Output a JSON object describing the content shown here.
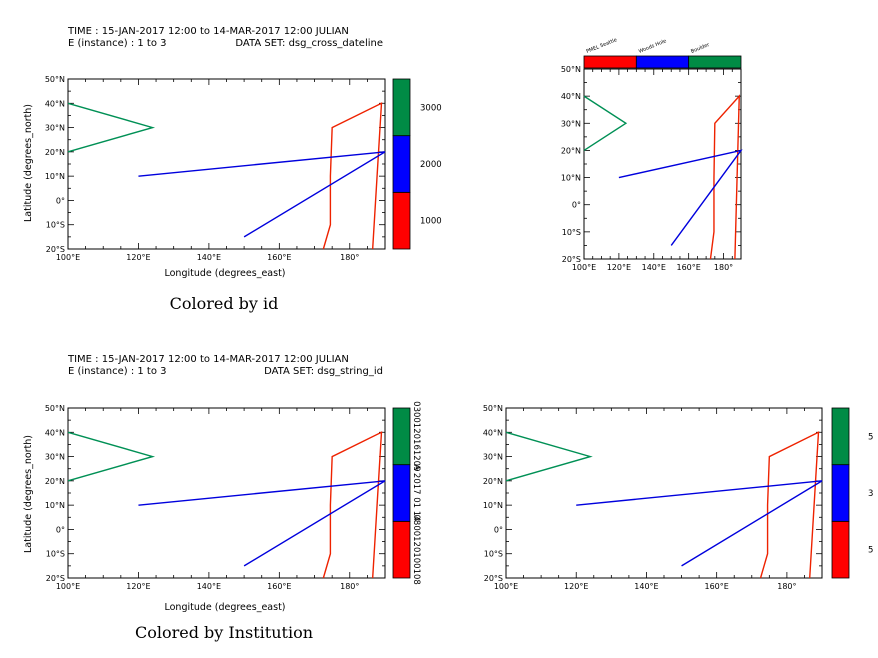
{
  "header_top": {
    "line1": "TIME : 15-JAN-2017 12:00 to 14-MAR-2017 12:00 JULIAN",
    "line2": "E (instance) : 1 to 3",
    "dataset": "DATA SET: dsg_cross_dateline"
  },
  "header_bottom": {
    "line1": "TIME : 15-JAN-2017 12:00 to 14-MAR-2017 12:00 JULIAN",
    "line2": "E (instance) : 1 to 3",
    "dataset": "DATA SET: dsg_string_id"
  },
  "captions": {
    "top": "Colored by id",
    "bottom": "Colored by Institution"
  },
  "axis_labels": {
    "x": "Longitude (degrees_east)",
    "y": "Latitude (degrees_north)"
  },
  "colors": {
    "red": "#ff0000",
    "blue": "#0000ff",
    "green": "#008b45",
    "red_line": "#ee2200",
    "blue_line": "#0000dd",
    "green_line": "#009055"
  },
  "chart_data": [
    {
      "id": "top-left",
      "type": "line",
      "xlim": [
        100,
        190
      ],
      "ylim": [
        -20,
        50
      ],
      "xticks": [
        100,
        120,
        140,
        160,
        180
      ],
      "xtick_labels": [
        "100°E",
        "120°E",
        "140°E",
        "160°E",
        "180°"
      ],
      "yticks": [
        -20,
        -10,
        0,
        10,
        20,
        30,
        40,
        50
      ],
      "ytick_labels": [
        "20°S",
        "10°S",
        "0°",
        "10°N",
        "20°N",
        "30°N",
        "40°N",
        "50°N"
      ],
      "colorbar": {
        "orientation": "vertical",
        "labels": [
          "1000",
          "2000",
          "3000"
        ]
      }
    },
    {
      "id": "top-right",
      "type": "line",
      "xlim": [
        100,
        190
      ],
      "ylim": [
        -20,
        50
      ],
      "xticks": [
        100,
        120,
        140,
        160,
        180
      ],
      "xtick_labels": [
        "100°E",
        "120°E",
        "140°E",
        "160°E",
        "180°"
      ],
      "yticks": [
        -20,
        -10,
        0,
        10,
        20,
        30,
        40,
        50
      ],
      "ytick_labels": [
        "20°S",
        "10°S",
        "0°",
        "10°N",
        "20°N",
        "30°N",
        "40°N",
        "50°N"
      ],
      "colorbar": {
        "orientation": "horizontal",
        "labels": [
          "PMEL Seattle",
          "Woods Hole",
          "Boulder"
        ]
      }
    },
    {
      "id": "bottom-left",
      "type": "line",
      "xlim": [
        100,
        190
      ],
      "ylim": [
        -20,
        50
      ],
      "xticks": [
        100,
        120,
        140,
        160,
        180
      ],
      "xtick_labels": [
        "100°E",
        "120°E",
        "140°E",
        "160°E",
        "180°"
      ],
      "yticks": [
        -20,
        -10,
        0,
        10,
        20,
        30,
        40,
        50
      ],
      "ytick_labels": [
        "20°S",
        "10°S",
        "0°",
        "10°N",
        "20°N",
        "30°N",
        "40°N",
        "50°N"
      ],
      "colorbar": {
        "orientation": "vertical",
        "labels": [
          "0800120100108",
          "A 2017 01 14",
          "0300120161209"
        ]
      }
    },
    {
      "id": "bottom-right",
      "type": "line",
      "xlim": [
        100,
        190
      ],
      "ylim": [
        -20,
        50
      ],
      "xticks": [
        100,
        120,
        140,
        160,
        180
      ],
      "xtick_labels": [
        "100°E",
        "120°E",
        "140°E",
        "160°E",
        "180°"
      ],
      "yticks": [
        -20,
        -10,
        0,
        10,
        20,
        30,
        40,
        50
      ],
      "ytick_labels": [
        "20°S",
        "10°S",
        "0°",
        "10°N",
        "20°N",
        "30°N",
        "40°N",
        "50°N"
      ],
      "colorbar": {
        "orientation": "vertical",
        "labels": [
          "5",
          "3",
          "5"
        ]
      }
    }
  ],
  "trajectories": [
    {
      "color_key": "red_line",
      "x": [
        172.5,
        174.5,
        174.5,
        175,
        189,
        186.5
      ],
      "y": [
        -20,
        -10,
        10,
        30,
        40,
        -20
      ]
    },
    {
      "color_key": "blue_line",
      "x": [
        120,
        190,
        150
      ],
      "y": [
        10,
        20,
        -15
      ]
    },
    {
      "color_key": "green_line",
      "x": [
        100,
        124,
        100
      ],
      "y": [
        40,
        30,
        20
      ]
    }
  ]
}
